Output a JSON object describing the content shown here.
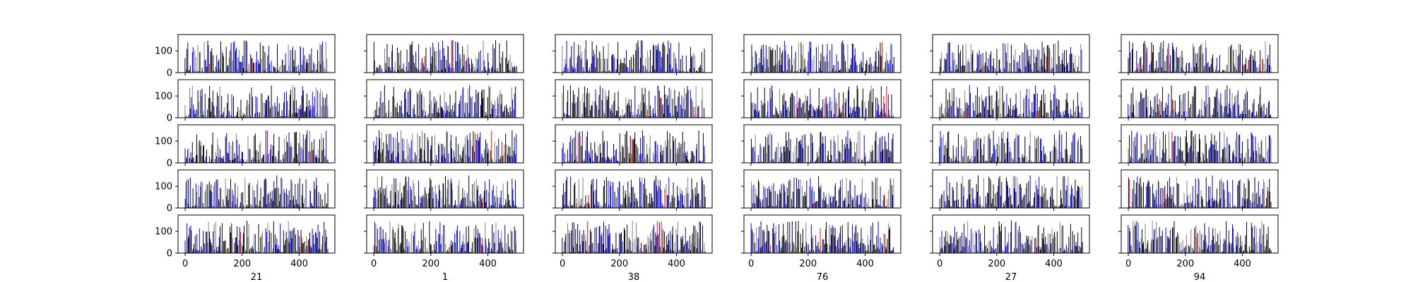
{
  "chart_data": {
    "type": "bar",
    "layout": {
      "rows": 5,
      "cols": 6,
      "sharex": true,
      "sharey": true
    },
    "xlim": [
      -25,
      525
    ],
    "ylim": [
      0,
      175
    ],
    "x_ticks": [
      0,
      200,
      400
    ],
    "y_ticks": [
      0,
      100
    ],
    "column_labels": [
      "21",
      "1",
      "38",
      "76",
      "27",
      "94"
    ],
    "bars_per_panel": 160,
    "x_range": [
      0,
      500
    ],
    "bar_colors": [
      "#000000",
      "#808080",
      "#0000cc",
      "#0000ff",
      "#ff0000"
    ],
    "value_range": [
      2,
      150
    ],
    "grid": false,
    "note_values": "Each panel shows ~160 thin bars spanning x 0–500 with heights between roughly 2 and 150 (black, gray, blue, occasional red)."
  }
}
